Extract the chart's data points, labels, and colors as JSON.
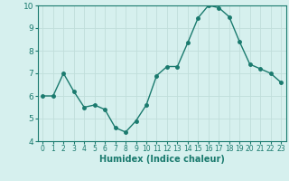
{
  "x": [
    0,
    1,
    2,
    3,
    4,
    5,
    6,
    7,
    8,
    9,
    10,
    11,
    12,
    13,
    14,
    15,
    16,
    17,
    18,
    19,
    20,
    21,
    22,
    23
  ],
  "y": [
    6.0,
    6.0,
    7.0,
    6.2,
    5.5,
    5.6,
    5.4,
    4.6,
    4.4,
    4.9,
    5.6,
    6.9,
    7.3,
    7.3,
    8.35,
    9.45,
    10.0,
    9.9,
    9.5,
    8.4,
    7.4,
    7.2,
    7.0,
    6.6
  ],
  "xlabel": "Humidex (Indice chaleur)",
  "xlim": [
    -0.5,
    23.5
  ],
  "ylim": [
    4,
    10
  ],
  "yticks": [
    4,
    5,
    6,
    7,
    8,
    9,
    10
  ],
  "xticks": [
    0,
    1,
    2,
    3,
    4,
    5,
    6,
    7,
    8,
    9,
    10,
    11,
    12,
    13,
    14,
    15,
    16,
    17,
    18,
    19,
    20,
    21,
    22,
    23
  ],
  "line_color": "#1a7a6e",
  "marker": "o",
  "marker_size": 2.5,
  "bg_color": "#d6f0ee",
  "grid_color": "#c0deda",
  "spine_color": "#1a7a6e"
}
